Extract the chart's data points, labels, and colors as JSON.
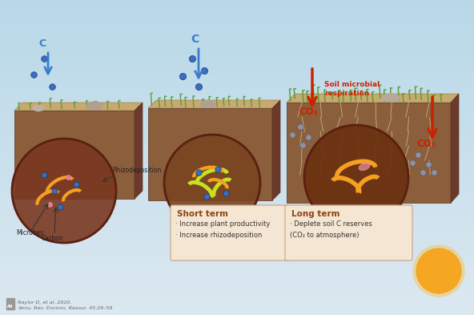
{
  "bg_top_color": "#b8d8e8",
  "bg_bottom_color": "#dce8f0",
  "title": "",
  "citation_line1": "Naylor D, et al. 2020.",
  "citation_line2": "Annu. Rev. Environ. Resour. 45:29–59",
  "short_term_title": "Short term",
  "short_term_bullets": [
    "· Increase plant productivity",
    "· Increase rhizodeposition"
  ],
  "long_term_title": "Long term",
  "long_term_bullets": [
    "· Deplete soil C reserves",
    "(CO₂ to atmosphere)"
  ],
  "label_microbes": "Microbes",
  "label_carbon": "Carbon",
  "label_rhizodeposition": "Rhizodeposition",
  "label_soil_microbial": "Soil microbial",
  "label_respiration": "respiration",
  "label_C1": "C",
  "label_C2": "C",
  "label_CO2_left": "CO₂",
  "label_CO2_right": "CO₂",
  "soil_top_color": "#c8a96e",
  "soil_mid_color": "#8B5E3C",
  "soil_dark_color": "#6B3A2A",
  "grass_color": "#5a9e3a",
  "sun_color": "#F5A623",
  "arrow_blue_color": "#3a7ec8",
  "arrow_red_color": "#cc2200",
  "box_color": "#f5e6d3",
  "short_term_color": "#8B4513",
  "long_term_color": "#8B4513",
  "microbe_color": "#4a7ec8",
  "worm_color": "#f5a020",
  "root_color": "#c8e060",
  "carbon_dot_color": "#3a6ec0"
}
